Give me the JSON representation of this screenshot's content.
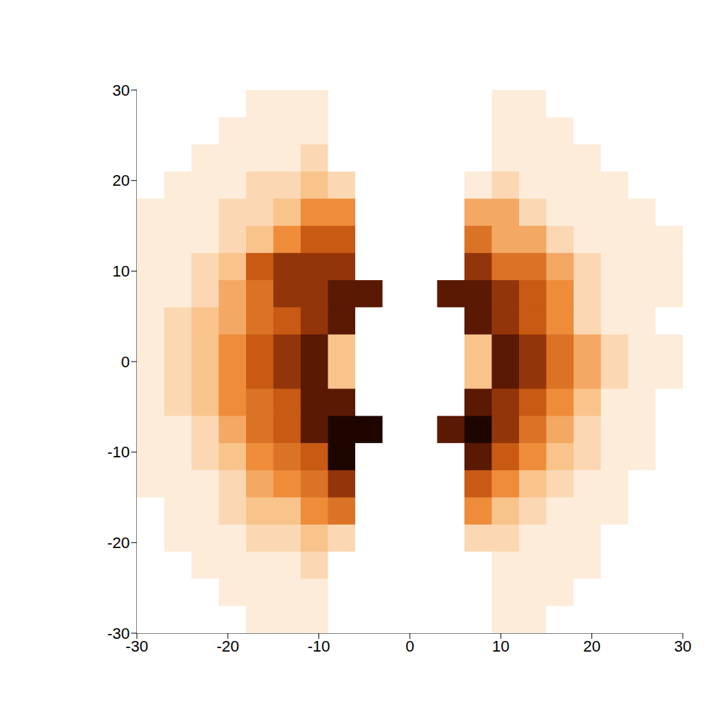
{
  "chart_data": {
    "type": "heatmap",
    "xlim": [
      -30,
      30
    ],
    "ylim": [
      -30,
      30
    ],
    "xticks": [
      -30,
      -20,
      -10,
      0,
      10,
      20,
      30
    ],
    "yticks": [
      -30,
      -20,
      -10,
      0,
      10,
      20,
      30
    ],
    "grid": false,
    "zlim": [
      0,
      10
    ],
    "x": [
      -28.5,
      -25.5,
      -22.5,
      -19.5,
      -16.5,
      -13.5,
      -10.5,
      -7.5,
      -4.5,
      -1.5,
      1.5,
      4.5,
      7.5,
      10.5,
      13.5,
      16.5,
      19.5,
      22.5,
      25.5,
      28.5
    ],
    "y": [
      28.5,
      25.5,
      22.5,
      19.5,
      16.5,
      13.5,
      10.5,
      7.5,
      4.5,
      1.5,
      -1.5,
      -4.5,
      -7.5,
      -10.5,
      -13.5,
      -16.5,
      -19.5,
      -22.5,
      -25.5,
      -28.5
    ],
    "z": [
      [
        0,
        0,
        0,
        0,
        1,
        1,
        1,
        0,
        0,
        0,
        0,
        0,
        0,
        1,
        1,
        0,
        0,
        0,
        0,
        0
      ],
      [
        0,
        0,
        0,
        1,
        1,
        1,
        1,
        0,
        0,
        0,
        0,
        0,
        0,
        1,
        1,
        1,
        0,
        0,
        0,
        0
      ],
      [
        0,
        0,
        1,
        1,
        1,
        1,
        2,
        0,
        0,
        0,
        0,
        0,
        0,
        1,
        1,
        1,
        1,
        0,
        0,
        0
      ],
      [
        0,
        1,
        1,
        1,
        2,
        2,
        3,
        2,
        0,
        0,
        0,
        0,
        1,
        2,
        1,
        1,
        1,
        1,
        0,
        0
      ],
      [
        1,
        1,
        1,
        2,
        2,
        3,
        5,
        5,
        0,
        0,
        0,
        0,
        4,
        4,
        2,
        1,
        1,
        1,
        1,
        0
      ],
      [
        1,
        1,
        1,
        2,
        3,
        5,
        7,
        7,
        0,
        0,
        0,
        0,
        6,
        4,
        4,
        2,
        1,
        1,
        1,
        1
      ],
      [
        1,
        1,
        2,
        3,
        7,
        8,
        8,
        8,
        0,
        0,
        0,
        0,
        8,
        6,
        6,
        4,
        2,
        1,
        1,
        1
      ],
      [
        1,
        1,
        2,
        4,
        6,
        8,
        8,
        9,
        9,
        0,
        0,
        9,
        9,
        8,
        7,
        5,
        2,
        1,
        1,
        1
      ],
      [
        1,
        2,
        3,
        4,
        6,
        7,
        8,
        9,
        0,
        0,
        0,
        0,
        9,
        8,
        7,
        5,
        2,
        1,
        1,
        0
      ],
      [
        1,
        2,
        3,
        5,
        7,
        8,
        9,
        3,
        0,
        0,
        0,
        0,
        3,
        9,
        8,
        6,
        4,
        2,
        1,
        1
      ],
      [
        1,
        2,
        3,
        5,
        7,
        8,
        9,
        3,
        0,
        0,
        0,
        0,
        3,
        9,
        8,
        6,
        4,
        2,
        1,
        1
      ],
      [
        1,
        2,
        3,
        5,
        6,
        7,
        9,
        9,
        0,
        0,
        0,
        0,
        9,
        8,
        7,
        5,
        3,
        1,
        1,
        0
      ],
      [
        1,
        1,
        2,
        4,
        6,
        7,
        9,
        10,
        10,
        0,
        0,
        9,
        10,
        8,
        6,
        4,
        2,
        1,
        1,
        0
      ],
      [
        1,
        1,
        2,
        3,
        5,
        6,
        7,
        10,
        0,
        0,
        0,
        0,
        9,
        7,
        5,
        3,
        2,
        1,
        1,
        0
      ],
      [
        1,
        1,
        1,
        2,
        4,
        5,
        6,
        8,
        0,
        0,
        0,
        0,
        7,
        5,
        3,
        2,
        1,
        1,
        0,
        0
      ],
      [
        0,
        1,
        1,
        2,
        3,
        3,
        5,
        6,
        0,
        0,
        0,
        0,
        5,
        3,
        2,
        1,
        1,
        1,
        0,
        0
      ],
      [
        0,
        1,
        1,
        1,
        2,
        2,
        3,
        2,
        0,
        0,
        0,
        0,
        2,
        2,
        1,
        1,
        1,
        0,
        0,
        0
      ],
      [
        0,
        0,
        1,
        1,
        1,
        1,
        2,
        0,
        0,
        0,
        0,
        0,
        0,
        1,
        1,
        1,
        1,
        0,
        0,
        0
      ],
      [
        0,
        0,
        0,
        1,
        1,
        1,
        1,
        0,
        0,
        0,
        0,
        0,
        0,
        1,
        1,
        1,
        0,
        0,
        0,
        0
      ],
      [
        0,
        0,
        0,
        0,
        1,
        1,
        1,
        0,
        0,
        0,
        0,
        0,
        0,
        1,
        1,
        0,
        0,
        0,
        0,
        0
      ]
    ]
  }
}
